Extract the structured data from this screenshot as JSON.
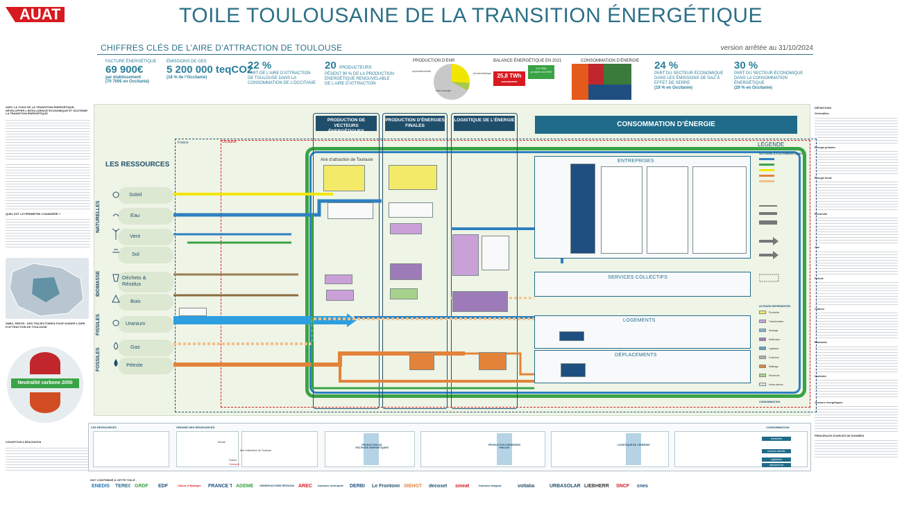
{
  "header": {
    "logo": "AUAT",
    "title": "TOILE TOULOUSAINE DE LA TRANSITION ÉNERGÉTIQUE",
    "subtitle": "CHIFFRES CLÉS DE L’AIRE D’ATTRACTION DE TOULOUSE",
    "version": "version arrêtée au 31/10/2024"
  },
  "key_figures": {
    "facture": {
      "label": "FACTURE ÉNERGÉTIQUE",
      "value": "69 900€",
      "unit": "par établissement",
      "note": "(70 700€ en Occitanie)"
    },
    "ges": {
      "label": "ÉMISSIONS DE GES",
      "value": "5 200 000 teqCO2",
      "note": "(18 % de l’Occitanie)"
    },
    "part_aire": {
      "value": "22 %",
      "desc": "PART DE L’AIRE D’ATTRACTION DE TOULOUSE DANS LA CONSOMMATION DE L’OCCITANIE"
    },
    "producteurs": {
      "value": "20",
      "unit": "PRODUCTEURS",
      "desc": "PÈSENT 90 % DE LA PRODUCTION ÉNERGÉTIQUE RENOUVELABLE DE L’AIRE D’ATTRACTION"
    },
    "production_enr": {
      "label": "PRODUCTION D’ENR",
      "slices": [
        "photovoltaïque",
        "hydroélectricité",
        "bois énergie"
      ]
    },
    "balance": {
      "label": "BALANCE ÉNERGÉTIQUE EN 2021",
      "consumed": "25,8 TWh",
      "consumed_label": "consommés",
      "produced": "2,6 TWh",
      "produced_label": "produits via ENR"
    },
    "consommation": {
      "label": "CONSOMMATION D’ÉNERGIE"
    },
    "secteur_ges": {
      "value": "24 %",
      "desc": "PART DU SECTEUR ÉCONOMIQUE DANS LES ÉMISSIONS DE GAZ À EFFET DE SERRE",
      "note": "(19 % en Occitanie)"
    },
    "secteur_conso": {
      "value": "30 %",
      "desc": "PART DU SECTEUR ÉCONOMIQUE DANS LA CONSOMMATION ÉNERGÉTIQUE",
      "note": "(29 % en Occitanie)"
    }
  },
  "left_column": {
    "intro_title": "AVEC LA TOILE DE LA TRANSITION ÉNERGÉTIQUE, DÉVELOPPER L’INTELLIGENCE ÉCONOMIQUE ET SOUTENIR LA TRANSITION ÉNERGÉTIQUE",
    "question_title": "QUEL EST LE PÉRIMÈTRE CONSIDÉRÉ ?",
    "snbc_title": "SNBC, REPOS : DES TRAJECTOIRES POUR GUIDER L’AIRE D’ATTRACTION DE TOULOUSE",
    "neutral_label": "Neutralité carbone 2050",
    "credits_title": "CONCEPTION & RÉALISATION"
  },
  "diagram": {
    "resources_title": "LES RESSOURCES",
    "groups": [
      "NATURELLES",
      "BIOMASSE",
      "FISSILES",
      "FOSSILES"
    ],
    "resources": [
      "Soleil",
      "Eau",
      "Vent",
      "Sol",
      "Déchets & Résidus",
      "Bois",
      "Uranium",
      "Gaz",
      "Pétrole"
    ],
    "zones": {
      "france": "France",
      "occitanie": "Occitanie",
      "aire": "Aire d’attraction de Toulouse"
    },
    "columns": [
      "PRODUCTION DE VECTEURS ÉNERGÉTIQUES",
      "PRODUCTION D’ÉNERGIES FINALES",
      "LOGISTIQUE DE L’ÉNERGIE"
    ],
    "consumption_title": "CONSOMMATION D’ÉNERGIE",
    "sectors": [
      "ENTREPRISES",
      "SERVICES COLLECTIFS",
      "LOGEMENTS",
      "DÉPLACEMENTS"
    ],
    "legend_title": "LÉGENDE",
    "legend_sections": [
      "VECTEURS & FLUX ÉNERGÉTIQUES",
      "ACTEURS REPRÉSENTÉS",
      "CONSOMMATION"
    ],
    "legend_items": [
      {
        "label": "Production",
        "color": "#f1e85a"
      },
      {
        "label": "Transformation",
        "color": "#c9a1d8"
      },
      {
        "label": "Stockage",
        "color": "#7fb3d6"
      },
      {
        "label": "Distribution",
        "color": "#9d7bb8"
      },
      {
        "label": "Logistique",
        "color": "#5aa1c9"
      },
      {
        "label": "Fourniture",
        "color": "#b0b0b0"
      },
      {
        "label": "Raffinage",
        "color": "#e3833a"
      },
      {
        "label": "Recherche",
        "color": "#a7d28c"
      },
      {
        "label": "Autres acteurs",
        "color": "#d7e2ea"
      }
    ]
  },
  "right_column": {
    "title": "DÉFINITIONS",
    "headings": [
      "Généralités",
      "Énergie primaire",
      "Énergie finale",
      "Électricité",
      "Gaz",
      "Pétrole",
      "Chaleur",
      "Biomasse",
      "Nucléaire",
      "Vecteurs énergétiques"
    ],
    "sources_title": "PRINCIPALES SOURCES DE DONNÉES"
  },
  "bottom_strip": {
    "labels": [
      "LES RESSOURCES",
      "ORIGINE DES RESSOURCES",
      "PRODUCTION DE VECTEURS ÉNERGÉTIQUES",
      "PRODUCTION D’ÉNERGIES FINALES",
      "LOGISTIQUE DE L’ÉNERGIE",
      "CONSOMMATION"
    ],
    "origin_items": [
      "Aire d’attraction de Toulouse",
      "France",
      "Monde",
      "Occitanie"
    ],
    "consumption_items": [
      "entreprises",
      "services collectifs",
      "logements",
      "déplacements"
    ]
  },
  "partners": {
    "label": "ONT CONTRIBUÉ À CETTE TOILE :",
    "names": [
      "ENEDIS",
      "TERÉGA",
      "GRDF",
      "EDF",
      "Caisse d’Epargne",
      "FRANCE TRAVAIL",
      "ADEME",
      "OBSERVATOIRE RÉGIONAL CLIMAT ÉNERGIE OCCITANIE",
      "AREC",
      "toulouse métropole",
      "DERBI",
      "Le Frontonnais",
      "SIEHGT",
      "decoset",
      "smeat",
      "toulouse blagnac",
      "voltalia",
      "URBASOLAR",
      "LIEBHERR",
      "SNCF",
      "cnes"
    ]
  }
}
